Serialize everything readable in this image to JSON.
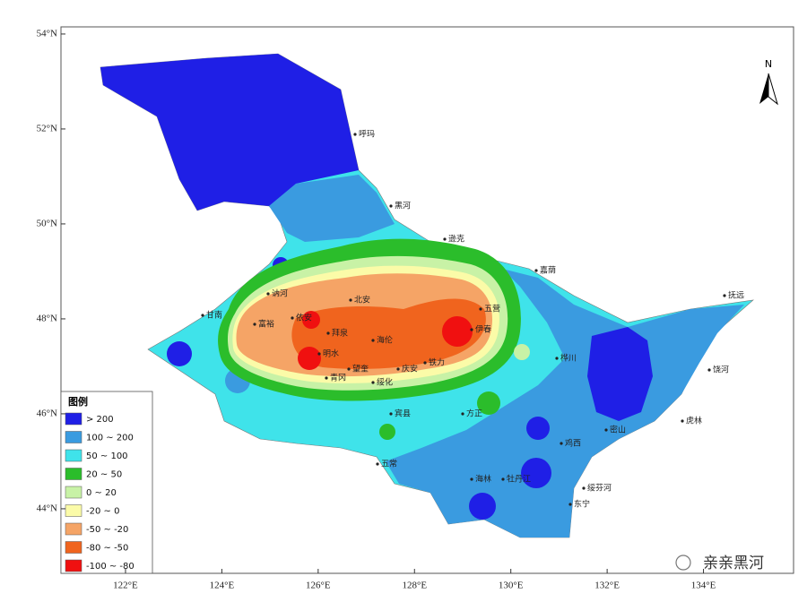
{
  "map": {
    "xlim": [
      120.66,
      135.87
    ],
    "ylim": [
      42.64,
      54.15
    ],
    "xticks": [
      {
        "value": 122,
        "label": "122°E"
      },
      {
        "value": 124,
        "label": "124°E"
      },
      {
        "value": 126,
        "label": "126°E"
      },
      {
        "value": 128,
        "label": "128°E"
      },
      {
        "value": 130,
        "label": "130°E"
      },
      {
        "value": 132,
        "label": "132°E"
      },
      {
        "value": 134,
        "label": "134°E"
      }
    ],
    "yticks": [
      {
        "value": 54,
        "label": "54°N"
      },
      {
        "value": 52,
        "label": "52°N"
      },
      {
        "value": 50,
        "label": "50°N"
      },
      {
        "value": 48,
        "label": "48°N"
      },
      {
        "value": 46,
        "label": "46°N"
      },
      {
        "value": 44,
        "label": "44°N"
      }
    ],
    "north": "N",
    "legend": {
      "title": "图例",
      "items": [
        {
          "label": "> 200",
          "color": "#1f1fe6"
        },
        {
          "label": "100 ~ 200",
          "color": "#3a9be0"
        },
        {
          "label": "50 ~ 100",
          "color": "#3fe3ea"
        },
        {
          "label": "20 ~ 50",
          "color": "#2bbd2b"
        },
        {
          "label": "0 ~ 20",
          "color": "#c8f2a6"
        },
        {
          "label": "-20 ~ 0",
          "color": "#fbfba8"
        },
        {
          "label": "-50 ~ -20",
          "color": "#f5a466"
        },
        {
          "label": "-80 ~ -50",
          "color": "#f0641e"
        },
        {
          "label": "-100 ~ -80",
          "color": "#f01010"
        }
      ]
    },
    "places": [
      "呼玛",
      "黑河",
      "逊克",
      "嘉荫",
      "抚远",
      "五营",
      "伊春",
      "海伦",
      "绥化",
      "庆安",
      "铁力",
      "望奎",
      "青冈",
      "明水",
      "拜泉",
      "依安",
      "富裕",
      "讷河",
      "北安",
      "甘南",
      "宾县",
      "方正",
      "五常",
      "海林",
      "牡丹江",
      "绥芬河",
      "东宁",
      "饶河",
      "虎林",
      "鸡西",
      "密山",
      "桦川"
    ],
    "watermark": "亲亲黑河"
  }
}
